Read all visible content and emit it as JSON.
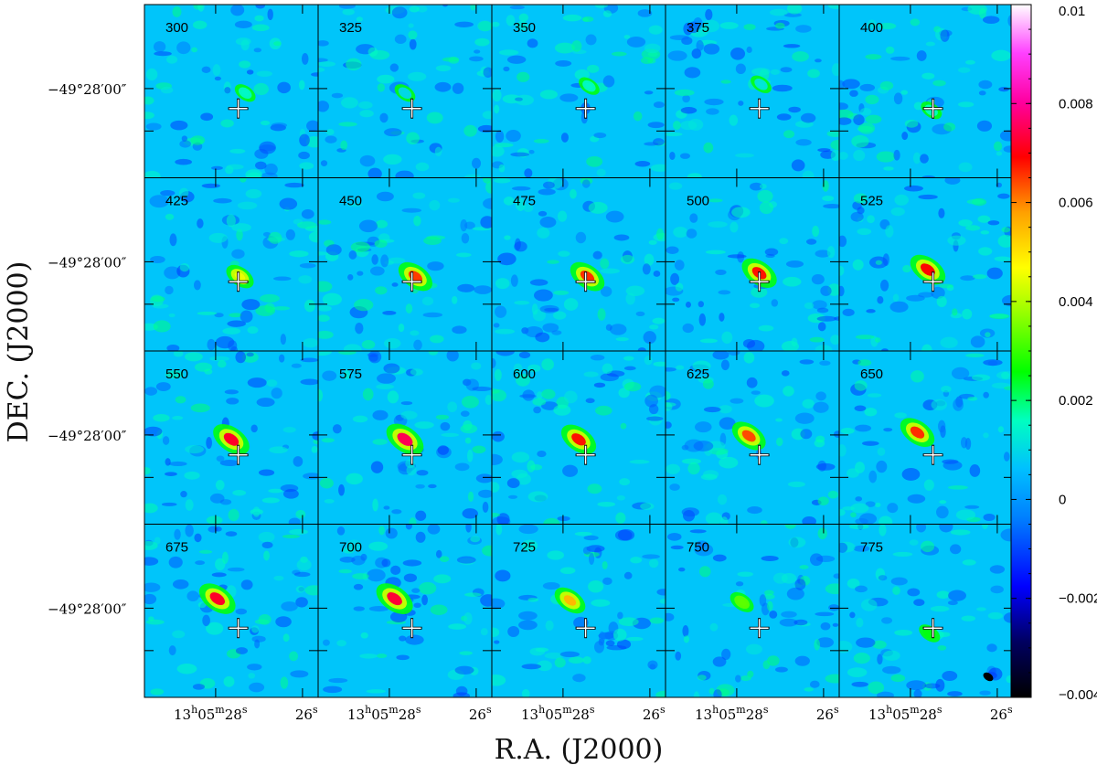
{
  "chart_data": {
    "type": "heatmap",
    "description_kind": "channel maps",
    "xlabel": "R.A. (J2000)",
    "ylabel": "DEC. (J2000)",
    "x_tick_major": "13h05m28s",
    "x_tick_major_parts": {
      "h": "13",
      "m": "05",
      "s": "28"
    },
    "x_tick_minor": "26s",
    "x_tick_minor_parts": {
      "v": "26",
      "u": "s"
    },
    "y_tick": "−49°28′00″",
    "panels": [
      {
        "label": "300",
        "peak": 0.0015,
        "dx": 0.08,
        "dy": 0.0
      },
      {
        "label": "325",
        "peak": 0.001,
        "dx": 0.0,
        "dy": 0.0
      },
      {
        "label": "350",
        "peak": 0.0015,
        "dx": 0.06,
        "dy": -0.04
      },
      {
        "label": "375",
        "peak": 0.0012,
        "dx": 0.05,
        "dy": -0.05
      },
      {
        "label": "400",
        "peak": 0.0016,
        "dx": 0.03,
        "dy": 0.1
      },
      {
        "label": "425",
        "peak": 0.0045,
        "dx": 0.05,
        "dy": 0.06
      },
      {
        "label": "450",
        "peak": 0.0065,
        "dx": 0.06,
        "dy": 0.06
      },
      {
        "label": "475",
        "peak": 0.0066,
        "dx": 0.05,
        "dy": 0.06
      },
      {
        "label": "500",
        "peak": 0.0068,
        "dx": 0.04,
        "dy": 0.04
      },
      {
        "label": "525",
        "peak": 0.0069,
        "dx": 0.01,
        "dy": 0.02
      },
      {
        "label": "550",
        "peak": 0.0072,
        "dx": 0.0,
        "dy": 0.0
      },
      {
        "label": "575",
        "peak": 0.0075,
        "dx": 0.0,
        "dy": 0.0
      },
      {
        "label": "600",
        "peak": 0.0068,
        "dx": 0.0,
        "dy": 0.0
      },
      {
        "label": "625",
        "peak": 0.0064,
        "dx": -0.02,
        "dy": -0.02
      },
      {
        "label": "650",
        "peak": 0.0066,
        "dx": -0.05,
        "dy": -0.04
      },
      {
        "label": "675",
        "peak": 0.0072,
        "dx": -0.08,
        "dy": -0.08
      },
      {
        "label": "700",
        "peak": 0.0073,
        "dx": -0.06,
        "dy": -0.08
      },
      {
        "label": "725",
        "peak": 0.0055,
        "dx": -0.05,
        "dy": -0.07
      },
      {
        "label": "750",
        "peak": 0.0033,
        "dx": -0.06,
        "dy": -0.06
      },
      {
        "label": "775",
        "peak": 0.0025,
        "dx": 0.02,
        "dy": 0.12
      }
    ],
    "colorbar": {
      "ticks": [
        0.01,
        0.008,
        0.006,
        0.004,
        0.002,
        0,
        -0.002,
        -0.004
      ],
      "tick_labels": [
        "0.01",
        "0.008",
        "0.006",
        "0.004",
        "0.002",
        "0",
        "−0.002",
        "−0.004"
      ],
      "min": -0.004,
      "max": 0.01,
      "colormap": "rainbow (black-blue-cyan-green-yellow-red-magenta-white)"
    },
    "grid": false
  }
}
